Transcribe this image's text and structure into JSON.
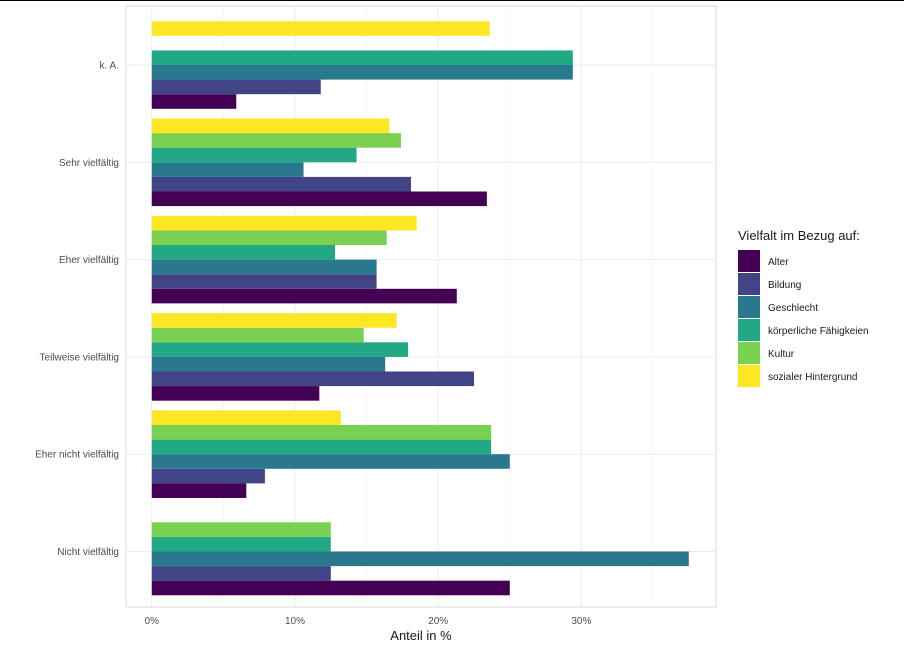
{
  "chart_data": {
    "type": "bar",
    "orientation": "horizontal",
    "position": "dodge",
    "categories": [
      "Nicht vielfältig",
      "Eher nicht vielfältig",
      "Teilweise vielfältig",
      "Eher vielfältig",
      "Sehr vielfältig",
      "k. A."
    ],
    "series": [
      {
        "name": "Alter",
        "color": "#440154",
        "values": [
          25.0,
          6.6,
          11.7,
          21.3,
          23.4,
          5.9
        ]
      },
      {
        "name": "Bildung",
        "color": "#414487",
        "values": [
          12.5,
          7.9,
          22.5,
          15.7,
          18.1,
          11.8
        ]
      },
      {
        "name": "Geschlecht",
        "color": "#2A788E",
        "values": [
          37.5,
          25.0,
          16.3,
          15.7,
          10.6,
          29.4
        ]
      },
      {
        "name": "körperliche Fähigkeien",
        "color": "#22A884",
        "values": [
          12.5,
          23.7,
          17.9,
          12.8,
          14.3,
          29.4
        ]
      },
      {
        "name": "Kultur",
        "color": "#7AD151",
        "values": [
          12.5,
          23.7,
          14.8,
          16.4,
          17.4,
          null
        ]
      },
      {
        "name": "sozialer Hintergrund",
        "color": "#FDE725",
        "values": [
          null,
          13.2,
          17.1,
          18.5,
          16.6,
          23.6
        ]
      }
    ],
    "x_ticks": [
      "0%",
      "10%",
      "20%",
      "30%"
    ],
    "x_tick_values": [
      0,
      10,
      20,
      30
    ],
    "xlim": [
      -1.8,
      39.4
    ],
    "xlabel": "Anteil in %",
    "ylabel": "",
    "legend_title": "Vielfalt im Bezug auf:",
    "legend_position": "right",
    "grid": true
  }
}
